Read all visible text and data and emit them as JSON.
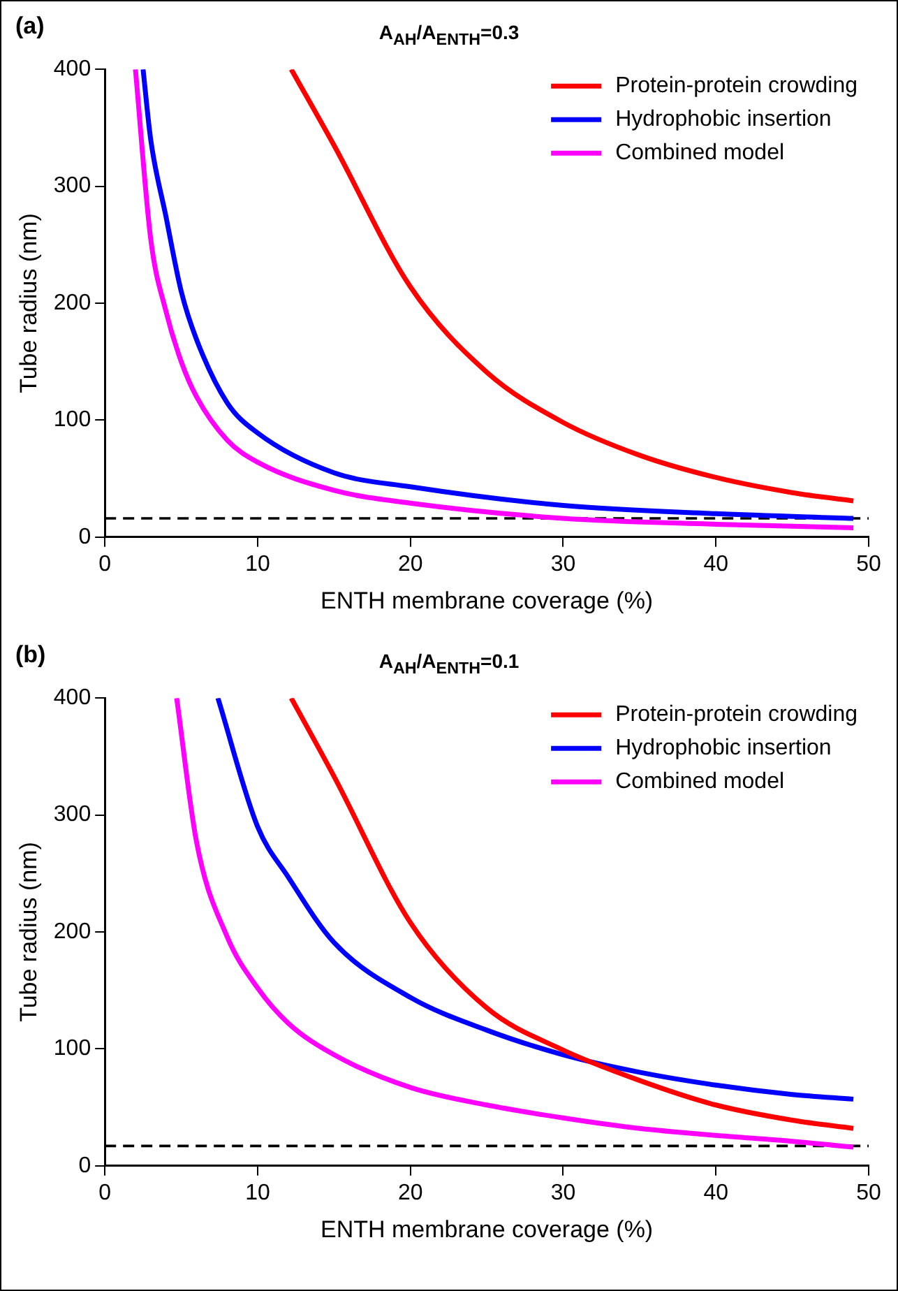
{
  "chart_data": [
    {
      "type": "line",
      "title": "A$_{AH}$/A$_{ENTH}$=0.3",
      "annotations": [
        "(a)"
      ],
      "xlabel": "ENTH membrane coverage (%)",
      "ylabel": "Tube radius (nm)",
      "xlim": [
        0,
        50
      ],
      "xticks": [
        0,
        10,
        20,
        30,
        40,
        50
      ],
      "ylim": [
        0,
        400
      ],
      "yticks": [
        0,
        100,
        200,
        300,
        400
      ],
      "grid": false,
      "legend": "top right",
      "line_style": "solid",
      "marker": "none",
      "ref_lines": [
        {
          "axis": "y",
          "value": 16,
          "color": "#000000",
          "line_style": "dashed"
        }
      ],
      "series": [
        {
          "name": "Protein-protein crowding",
          "color": "#ff0000",
          "x": [
            12.2,
            15,
            20,
            25,
            30,
            35,
            40,
            45,
            49
          ],
          "values": [
            400,
            335,
            214,
            141,
            98,
            70,
            51,
            38,
            31
          ]
        },
        {
          "name": "Hydrophobic insertion",
          "color": "#0000ff",
          "x": [
            2.5,
            3,
            4,
            5,
            6,
            8,
            10,
            15,
            20,
            30,
            40,
            49
          ],
          "values": [
            400,
            340,
            274,
            210,
            169,
            115,
            89,
            55,
            43,
            27,
            20,
            16
          ]
        },
        {
          "name": "Combined model",
          "color": "#ff00ff",
          "x": [
            2,
            3,
            4,
            5,
            6,
            8,
            10,
            15,
            20,
            30,
            40,
            49
          ],
          "values": [
            400,
            255,
            193,
            150,
            120,
            83,
            64,
            40,
            29,
            16,
            11,
            8
          ]
        }
      ]
    },
    {
      "type": "line",
      "title": "A$_{AH}$/A$_{ENTH}$=0.1",
      "annotations": [
        "(b)"
      ],
      "xlabel": "ENTH membrane coverage (%)",
      "ylabel": "Tube radius (nm)",
      "xlim": [
        0,
        50
      ],
      "xticks": [
        0,
        10,
        20,
        30,
        40,
        50
      ],
      "ylim": [
        0,
        400
      ],
      "yticks": [
        0,
        100,
        200,
        300,
        400
      ],
      "grid": false,
      "legend": "top right",
      "line_style": "solid",
      "marker": "none",
      "ref_lines": [
        {
          "axis": "y",
          "value": 17,
          "color": "#000000",
          "line_style": "dashed"
        }
      ],
      "series": [
        {
          "name": "Protein-protein crowding",
          "color": "#ff0000",
          "x": [
            12.2,
            15,
            20,
            25,
            30,
            35,
            40,
            45,
            49
          ],
          "values": [
            400,
            333,
            208,
            135,
            99,
            73,
            52,
            39,
            32
          ]
        },
        {
          "name": "Hydrophobic insertion",
          "color": "#0000ff",
          "x": [
            7.4,
            10,
            12,
            15,
            20,
            25,
            30,
            35,
            40,
            45,
            49
          ],
          "values": [
            400,
            290,
            247,
            191,
            144,
            116,
            95,
            80,
            69,
            61,
            57
          ]
        },
        {
          "name": "Combined model",
          "color": "#ff00ff",
          "x": [
            4.7,
            6,
            8,
            10,
            12,
            15,
            20,
            25,
            30,
            35,
            40,
            45,
            49
          ],
          "values": [
            400,
            277,
            196,
            152,
            122,
            95,
            67,
            52,
            41,
            32,
            26,
            21,
            16
          ]
        }
      ]
    }
  ]
}
